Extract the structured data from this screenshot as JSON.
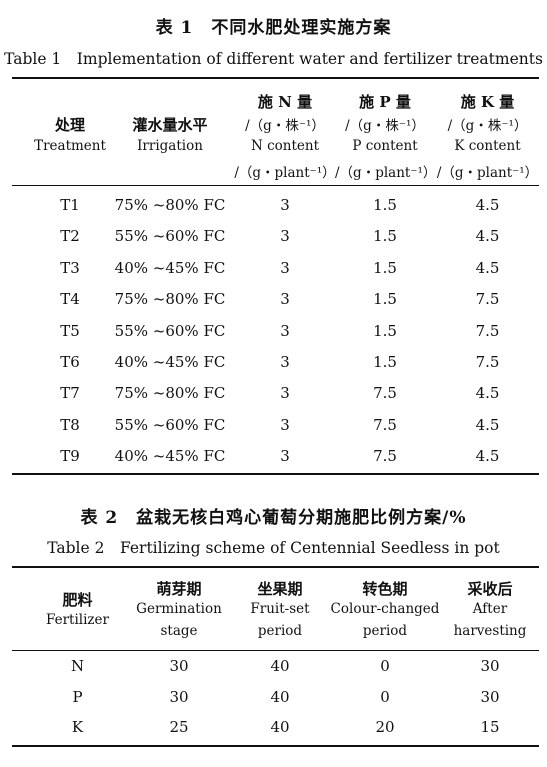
{
  "table1": {
    "title_cn": "表 1　不同水肥处理实施方案",
    "title_en": "Table 1　Implementation of different water and fertilizer treatments",
    "headers": [
      {
        "cn": "处理",
        "en": "Treatment"
      },
      {
        "cn": "灌水量水平",
        "en": "Irrigation"
      },
      {
        "cn": "施 N 量",
        "unit_cn": "/（g・株⁻¹）",
        "en": "N content",
        "unit_en": "/（g・plant⁻¹）"
      },
      {
        "cn": "施 P 量",
        "unit_cn": "/（g・株⁻¹）",
        "en": "P content",
        "unit_en": "/（g・plant⁻¹）"
      },
      {
        "cn": "施 K 量",
        "unit_cn": "/（g・株⁻¹）",
        "en": "K content",
        "unit_en": "/（g・plant⁻¹）"
      }
    ],
    "rows": [
      [
        "T1",
        "75% ~80%  FC",
        "3",
        "1.5",
        "4.5"
      ],
      [
        "T2",
        "55% ~60%  FC",
        "3",
        "1.5",
        "4.5"
      ],
      [
        "T3",
        "40% ~45%  FC",
        "3",
        "1.5",
        "4.5"
      ],
      [
        "T4",
        "75% ~80%  FC",
        "3",
        "1.5",
        "7.5"
      ],
      [
        "T5",
        "55% ~60%  FC",
        "3",
        "1.5",
        "7.5"
      ],
      [
        "T6",
        "40% ~45%  FC",
        "3",
        "1.5",
        "7.5"
      ],
      [
        "T7",
        "75% ~80%  FC",
        "3",
        "7.5",
        "4.5"
      ],
      [
        "T8",
        "55% ~60%  FC",
        "3",
        "7.5",
        "4.5"
      ],
      [
        "T9",
        "40% ~45%  FC",
        "3",
        "7.5",
        "4.5"
      ]
    ]
  },
  "table2": {
    "title_cn": "表 2　盆栽无核白鸡心葡萄分期施肥比例方案/%",
    "title_en": "Table 2　Fertilizing scheme of Centennial Seedless in pot",
    "headers": [
      {
        "cn": "肥料",
        "en1": "Fertilizer",
        "en2": ""
      },
      {
        "cn": "萌芽期",
        "en1": "Germination",
        "en2": "stage"
      },
      {
        "cn": "坐果期",
        "en1": "Fruit-set",
        "en2": "period"
      },
      {
        "cn": "转色期",
        "en1": "Colour-changed",
        "en2": "period"
      },
      {
        "cn": "采收后",
        "en1": "After",
        "en2": "harvesting"
      }
    ],
    "rows": [
      [
        "N",
        "30",
        "40",
        "0",
        "30"
      ],
      [
        "P",
        "30",
        "40",
        "0",
        "30"
      ],
      [
        "K",
        "25",
        "40",
        "20",
        "15"
      ]
    ]
  }
}
